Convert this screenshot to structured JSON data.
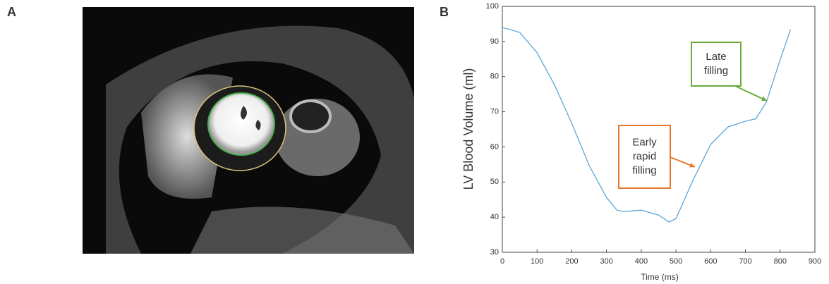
{
  "panel_labels": [
    "A",
    "B"
  ],
  "chart_data": {
    "type": "line",
    "xlabel": "Time (ms)",
    "ylabel": "LV Blood Volume (ml)",
    "x": [
      0,
      50,
      100,
      150,
      200,
      250,
      300,
      330,
      350,
      400,
      450,
      480,
      500,
      550,
      600,
      650,
      700,
      730,
      760,
      800,
      830
    ],
    "values": [
      94,
      92.6,
      86.8,
      77.7,
      66.7,
      54.7,
      45.6,
      42,
      41.6,
      42,
      40.6,
      38.6,
      39.6,
      50.7,
      60.7,
      65.7,
      67.3,
      68,
      72.7,
      84.8,
      93.4
    ],
    "color": "#5aa7dc",
    "xlim": [
      0,
      900
    ],
    "xticks": [
      0,
      100,
      200,
      300,
      400,
      500,
      600,
      700,
      800,
      900
    ],
    "ylim": [
      30,
      100
    ],
    "yticks": [
      30,
      40,
      50,
      60,
      70,
      80,
      90,
      100
    ],
    "annotations": [
      {
        "lines": [
          "Late",
          "filling"
        ],
        "color": "#6aab3c"
      },
      {
        "lines": [
          "Early",
          "rapid",
          "filling"
        ],
        "color": "#e8772e"
      }
    ]
  }
}
